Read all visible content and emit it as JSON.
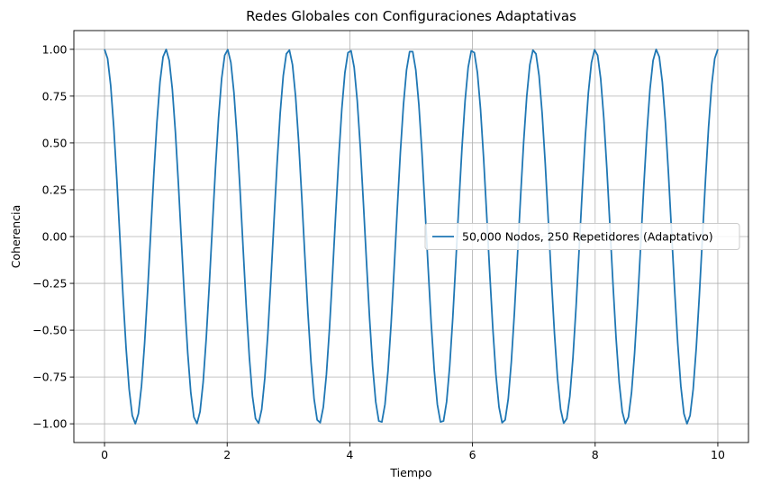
{
  "chart_data": {
    "type": "line",
    "title": "Redes Globales con Configuraciones Adaptativas",
    "xlabel": "Tiempo",
    "ylabel": "Coherencia",
    "xlim": [
      -0.5,
      10.5
    ],
    "ylim": [
      -1.1,
      1.1
    ],
    "x_ticks": [
      0,
      2,
      4,
      6,
      8,
      10
    ],
    "x_tick_labels": [
      "0",
      "2",
      "4",
      "6",
      "8",
      "10"
    ],
    "y_ticks": [
      -1.0,
      -0.75,
      -0.5,
      -0.25,
      0.0,
      0.25,
      0.5,
      0.75,
      1.0
    ],
    "y_tick_labels": [
      "−1.00",
      "−0.75",
      "−0.50",
      "−0.25",
      "0.00",
      "0.25",
      "0.50",
      "0.75",
      "1.00"
    ],
    "grid": true,
    "legend_position": "center-right",
    "series": [
      {
        "name": "50,000 Nodos, 250 Repetidores (Adaptativo)",
        "color": "#1f77b4",
        "function": "cos(2*pi*t)",
        "x_range": [
          0,
          10
        ],
        "sample_count": 200
      }
    ]
  }
}
